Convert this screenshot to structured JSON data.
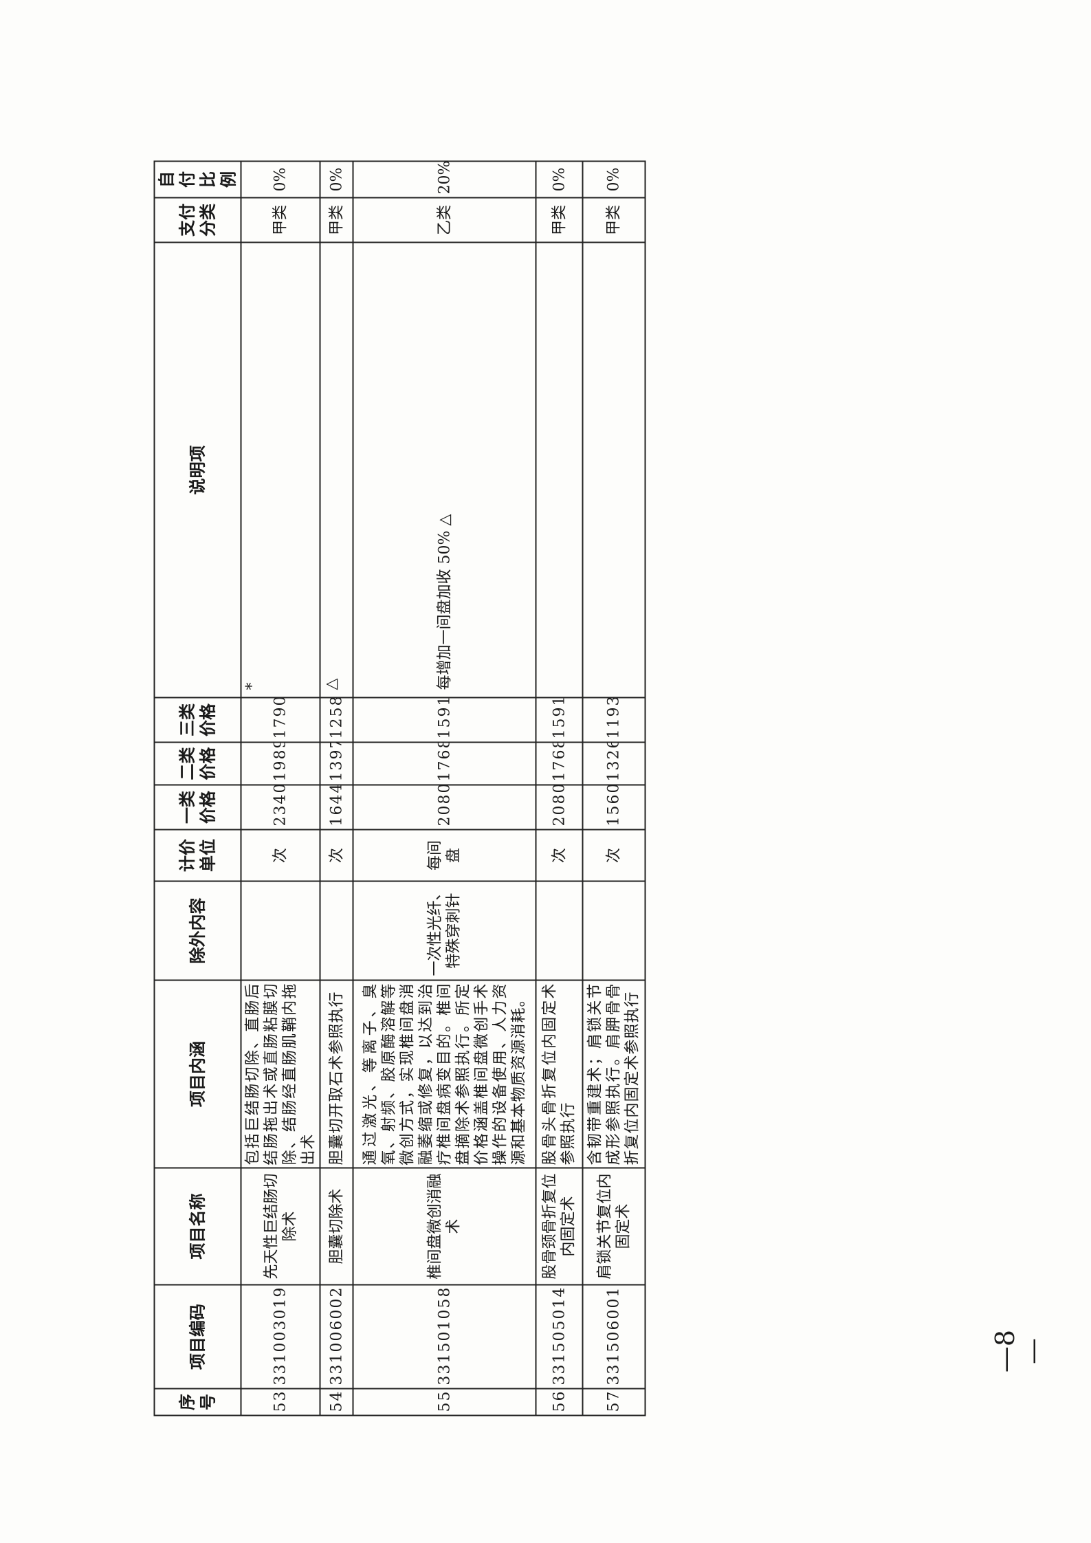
{
  "table": {
    "headers": [
      "序号",
      "项目编码",
      "项目名称",
      "项目内涵",
      "除外内容",
      "计价单位",
      "一类价格",
      "二类价格",
      "三类价格",
      "说明项",
      "支付分类",
      "自付比例"
    ],
    "rows": [
      {
        "no": "53",
        "code": "331003019",
        "name": "先天性巨结肠切除术",
        "content": "包括巨结肠切除、直肠后结肠拖出术或直肠粘膜切除、结肠经直肠肌鞘内拖出术",
        "exclude": "",
        "unit": "次",
        "p1": "2340",
        "p2": "1989",
        "p3": "1790",
        "note": "*",
        "pay": "甲类",
        "ratio": "0%"
      },
      {
        "no": "54",
        "code": "331006002",
        "name": "胆囊切除术",
        "content": "胆囊切开取石术参照执行",
        "exclude": "",
        "unit": "次",
        "p1": "1644",
        "p2": "1397",
        "p3": "1258",
        "note": "△",
        "pay": "甲类",
        "ratio": "0%"
      },
      {
        "no": "55",
        "code": "331501058",
        "name": "椎间盘微创消融术",
        "content": "通过激光、等离子、臭氧、射频、胶原酶溶解等微创方式，实现椎间盘消融萎缩或修复，以达到治疗椎间盘病变目的。椎间盘摘除术参照执行。所定价格涵盖椎间盘微创手术操作的设备使用、人力资源和基本物质资源消耗。",
        "exclude": "一次性光纤、特殊穿刺针",
        "unit": "每间盘",
        "p1": "2080",
        "p2": "1768",
        "p3": "1591",
        "note": "每增加一间盘加收 50% △",
        "pay": "乙类",
        "ratio": "20%"
      },
      {
        "no": "56",
        "code": "331505014",
        "name": "股骨颈骨折复位内固定术",
        "content": "股骨头骨折复位内固定术参照执行",
        "exclude": "",
        "unit": "次",
        "p1": "2080",
        "p2": "1768",
        "p3": "1591",
        "note": "",
        "pay": "甲类",
        "ratio": "0%"
      },
      {
        "no": "57",
        "code": "331506001",
        "name": "肩锁关节复位内固定术",
        "content": "含韧带重建术；肩锁关节成形参照执行。肩胛骨骨折复位内固定术参照执行",
        "exclude": "",
        "unit": "次",
        "p1": "1560",
        "p2": "1326",
        "p3": "1193",
        "note": "",
        "pay": "甲类",
        "ratio": "0%"
      }
    ]
  },
  "page_number": "—8—"
}
